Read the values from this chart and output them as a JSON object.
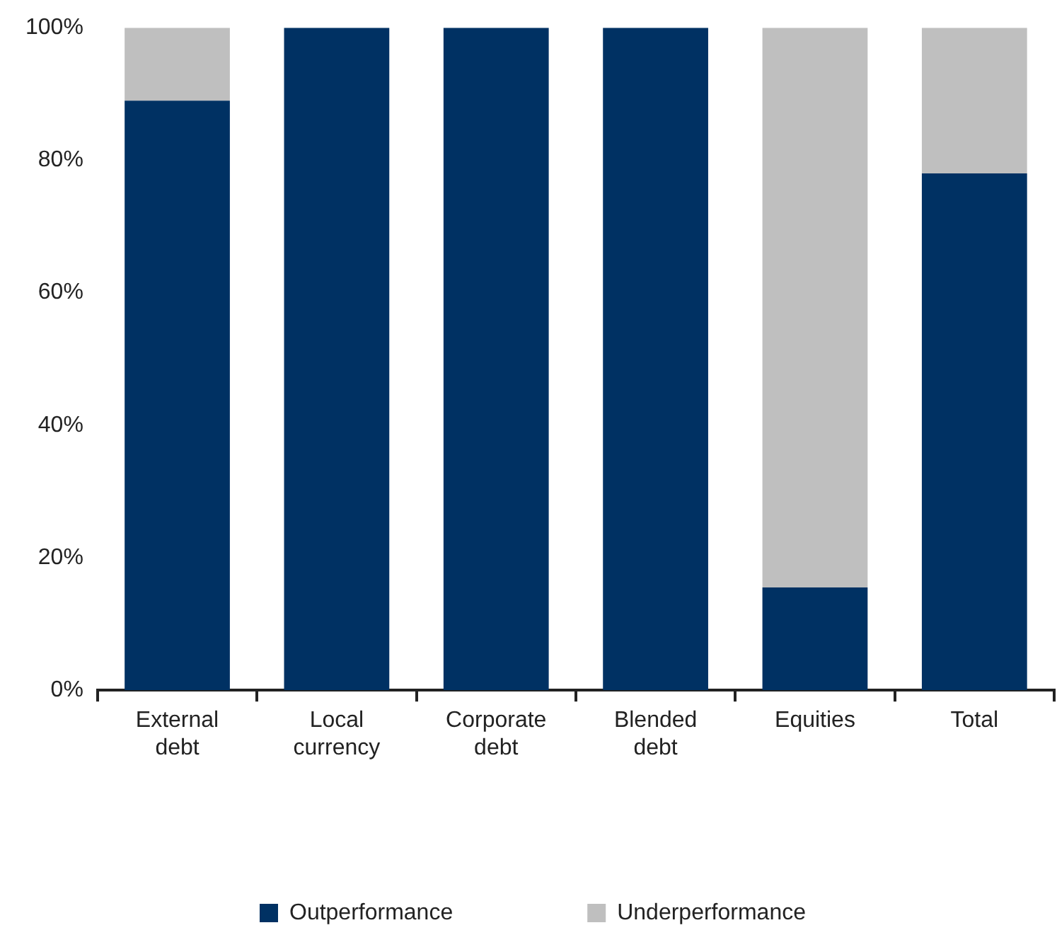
{
  "chart_data": {
    "type": "bar",
    "stacked": true,
    "categories": [
      "External debt",
      "Local currency",
      "Corporate debt",
      "Blended debt",
      "Equities",
      "Total"
    ],
    "series": [
      {
        "name": "Outperformance",
        "color": "#003163",
        "values": [
          89,
          100,
          100,
          100,
          15.5,
          78
        ]
      },
      {
        "name": "Underperformance",
        "color": "#bfbfbf",
        "values": [
          11,
          0,
          0,
          0,
          84.5,
          22
        ]
      }
    ],
    "ylim": [
      0,
      100
    ],
    "yticks": [
      {
        "value": 0,
        "label": "0%"
      },
      {
        "value": 20,
        "label": "20%"
      },
      {
        "value": 40,
        "label": "40%"
      },
      {
        "value": 60,
        "label": "60%"
      },
      {
        "value": 80,
        "label": "80%"
      },
      {
        "value": 100,
        "label": "100%"
      }
    ],
    "grid": false,
    "legend": "bottom"
  }
}
